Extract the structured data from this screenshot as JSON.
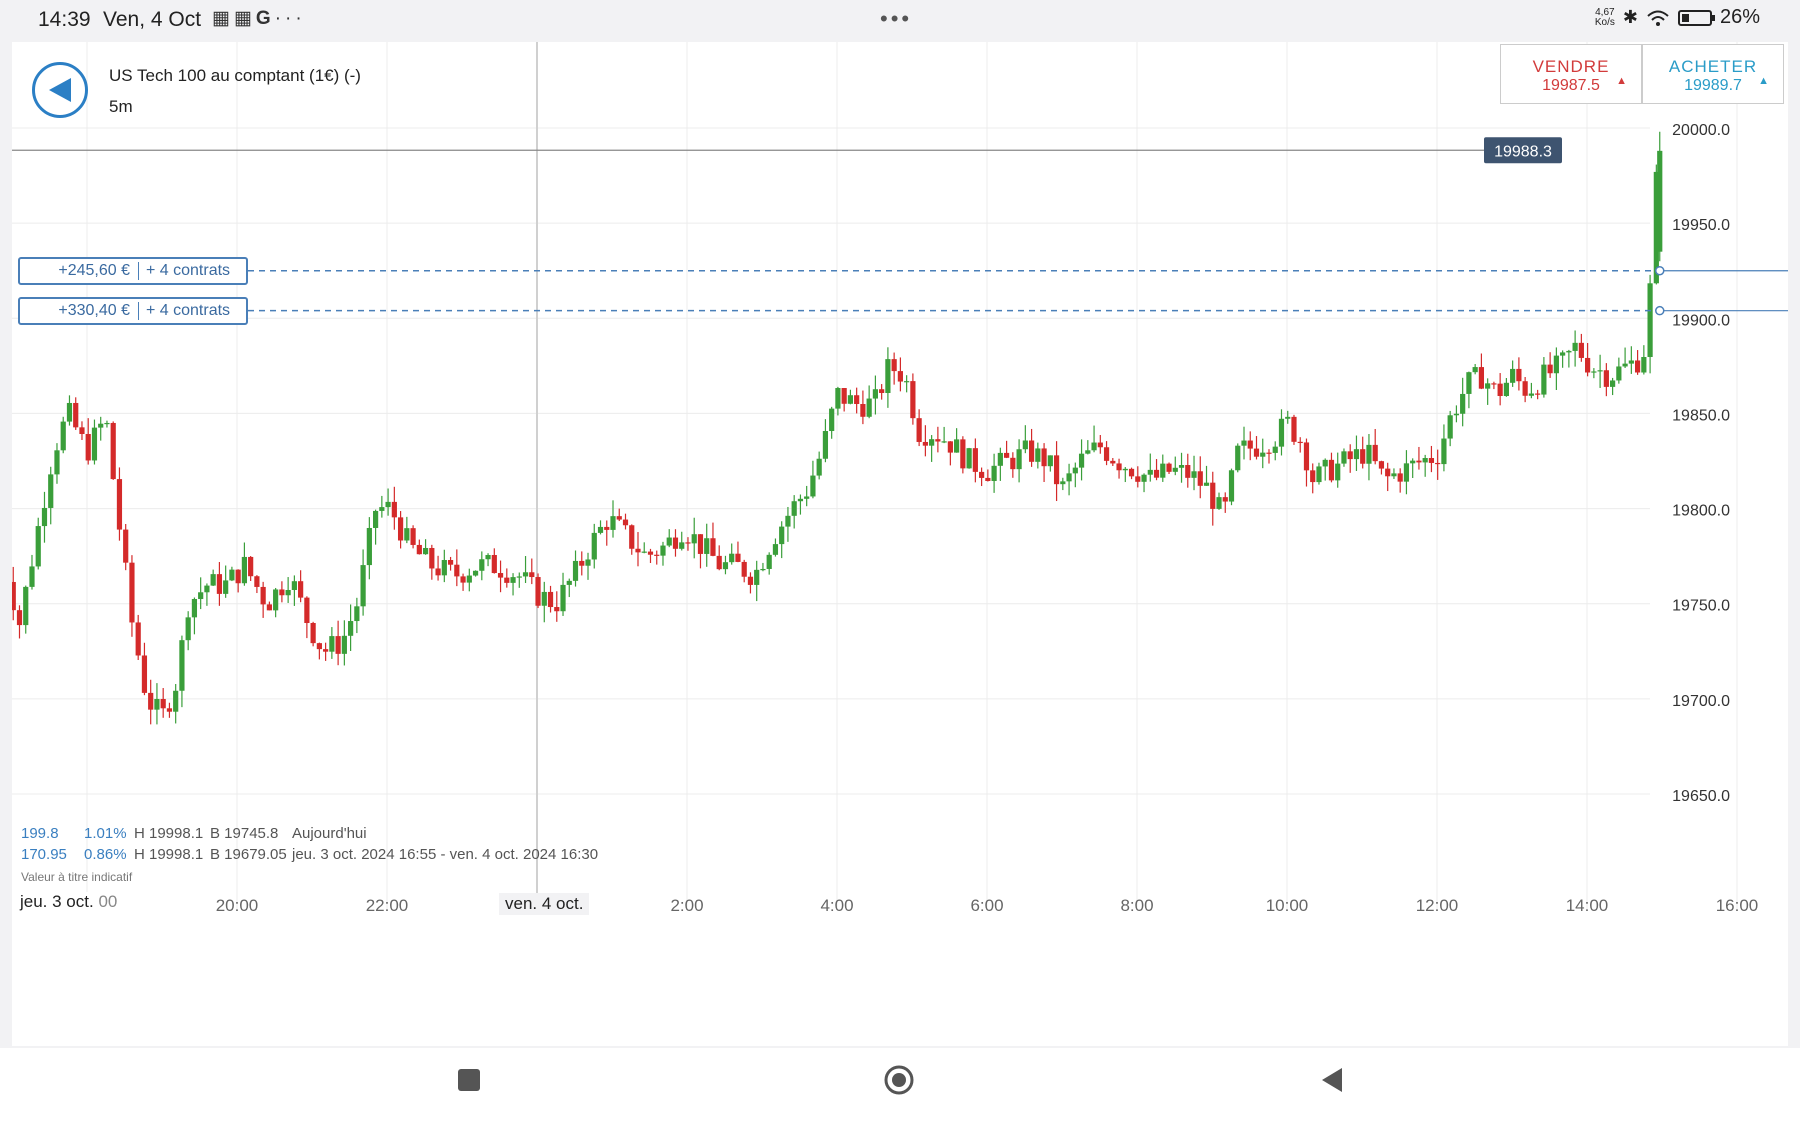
{
  "status_bar": {
    "time": "14:39",
    "date": "Ven, 4 Oct",
    "notification_icons": [
      "news-icon",
      "news-icon",
      "google-icon",
      "more-icon"
    ],
    "net_speed": "4,67",
    "net_speed_unit": "Ko/s",
    "battery": "26%",
    "battery_level": 0.26
  },
  "header": {
    "instrument": "US Tech 100 au comptant (1€) (-)",
    "timeframe": "5m"
  },
  "trade": {
    "sell_label": "VENDRE",
    "sell_price": "19987.5",
    "buy_label": "ACHETER",
    "buy_price": "19989.7"
  },
  "positions": [
    {
      "pnl": "+245,60 €",
      "qty": "+ 4 contrats",
      "level": 19925
    },
    {
      "pnl": "+330,40 €",
      "qty": "+ 4 contrats",
      "level": 19904
    }
  ],
  "stats": {
    "today": {
      "change": "199.8",
      "pct": "1.01%",
      "high": "H 19998.1",
      "low": "B 19745.8",
      "label": "Aujourd'hui"
    },
    "range": {
      "change": "170.95",
      "pct": "0.86%",
      "high": "H 19998.1",
      "low": "B 19679.05",
      "label": "jeu. 3 oct. 2024 16:55 - ven. 4 oct. 2024 16:30"
    }
  },
  "disclaimer": "Valeur à titre indicatif",
  "chart_data": {
    "type": "candlestick",
    "current_price": 19988.3,
    "current_price_label": "19988.3",
    "y_range": [
      19600,
      20010
    ],
    "y_ticks": [
      "20000.0",
      "19950.0",
      "19900.0",
      "19850.0",
      "19800.0",
      "19750.0",
      "19700.0",
      "19650.0"
    ],
    "y_tick_values": [
      20000,
      19950,
      19900,
      19850,
      19800,
      19750,
      19700,
      19650
    ],
    "x_start_label": "jeu. 3 oct.",
    "x_start_partial": "00",
    "x_ticks": [
      "20:00",
      "22:00",
      "ven. 4 oct.",
      "2:00",
      "4:00",
      "6:00",
      "8:00",
      "10:00",
      "12:00",
      "14:00",
      "16:00"
    ],
    "x_tick_hours": [
      20,
      22,
      24,
      26,
      28,
      30,
      32,
      34,
      36,
      38,
      40
    ],
    "x_range_hours": [
      16.85,
      40.0
    ],
    "series_colors": {
      "up": "#3a9e3a",
      "down": "#d42a2a"
    },
    "closes": [
      {
        "t": 16.9,
        "c": 19770
      },
      {
        "t": 17.1,
        "c": 19740
      },
      {
        "t": 17.3,
        "c": 19780
      },
      {
        "t": 17.55,
        "c": 19830
      },
      {
        "t": 17.75,
        "c": 19850
      },
      {
        "t": 18.0,
        "c": 19830
      },
      {
        "t": 18.25,
        "c": 19848
      },
      {
        "t": 18.4,
        "c": 19800
      },
      {
        "t": 18.6,
        "c": 19740
      },
      {
        "t": 18.8,
        "c": 19700
      },
      {
        "t": 19.0,
        "c": 19690
      },
      {
        "t": 19.2,
        "c": 19710
      },
      {
        "t": 19.35,
        "c": 19750
      },
      {
        "t": 19.6,
        "c": 19760
      },
      {
        "t": 19.85,
        "c": 19760
      },
      {
        "t": 20.1,
        "c": 19770
      },
      {
        "t": 20.4,
        "c": 19750
      },
      {
        "t": 20.7,
        "c": 19765
      },
      {
        "t": 20.95,
        "c": 19740
      },
      {
        "t": 21.15,
        "c": 19725
      },
      {
        "t": 21.4,
        "c": 19730
      },
      {
        "t": 21.6,
        "c": 19750
      },
      {
        "t": 21.85,
        "c": 19800
      },
      {
        "t": 22.05,
        "c": 19800
      },
      {
        "t": 22.3,
        "c": 19780
      },
      {
        "t": 22.6,
        "c": 19770
      },
      {
        "t": 22.9,
        "c": 19765
      },
      {
        "t": 23.2,
        "c": 19770
      },
      {
        "t": 23.45,
        "c": 19770
      },
      {
        "t": 23.75,
        "c": 19765
      },
      {
        "t": 24.0,
        "c": 19755
      },
      {
        "t": 24.25,
        "c": 19750
      },
      {
        "t": 24.5,
        "c": 19765
      },
      {
        "t": 24.7,
        "c": 19780
      },
      {
        "t": 24.95,
        "c": 19795
      },
      {
        "t": 25.2,
        "c": 19785
      },
      {
        "t": 25.45,
        "c": 19775
      },
      {
        "t": 25.7,
        "c": 19780
      },
      {
        "t": 25.95,
        "c": 19790
      },
      {
        "t": 26.2,
        "c": 19780
      },
      {
        "t": 26.45,
        "c": 19770
      },
      {
        "t": 26.65,
        "c": 19770
      },
      {
        "t": 26.9,
        "c": 19765
      },
      {
        "t": 27.15,
        "c": 19785
      },
      {
        "t": 27.4,
        "c": 19800
      },
      {
        "t": 27.6,
        "c": 19810
      },
      {
        "t": 27.8,
        "c": 19830
      },
      {
        "t": 28.0,
        "c": 19860
      },
      {
        "t": 28.25,
        "c": 19855
      },
      {
        "t": 28.5,
        "c": 19855
      },
      {
        "t": 28.7,
        "c": 19875
      },
      {
        "t": 28.9,
        "c": 19870
      },
      {
        "t": 29.1,
        "c": 19840
      },
      {
        "t": 29.3,
        "c": 19840
      },
      {
        "t": 29.5,
        "c": 19835
      },
      {
        "t": 29.75,
        "c": 19825
      },
      {
        "t": 30.0,
        "c": 19820
      },
      {
        "t": 30.3,
        "c": 19825
      },
      {
        "t": 30.55,
        "c": 19830
      },
      {
        "t": 30.8,
        "c": 19825
      },
      {
        "t": 31.0,
        "c": 19810
      },
      {
        "t": 31.25,
        "c": 19825
      },
      {
        "t": 31.5,
        "c": 19833
      },
      {
        "t": 31.75,
        "c": 19825
      },
      {
        "t": 32.0,
        "c": 19820
      },
      {
        "t": 32.2,
        "c": 19815
      },
      {
        "t": 32.45,
        "c": 19820
      },
      {
        "t": 32.7,
        "c": 19818
      },
      {
        "t": 32.95,
        "c": 19810
      },
      {
        "t": 33.15,
        "c": 19795
      },
      {
        "t": 33.35,
        "c": 19830
      },
      {
        "t": 33.6,
        "c": 19833
      },
      {
        "t": 33.85,
        "c": 19838
      },
      {
        "t": 34.0,
        "c": 19845
      },
      {
        "t": 34.2,
        "c": 19835
      },
      {
        "t": 34.35,
        "c": 19815
      },
      {
        "t": 34.55,
        "c": 19820
      },
      {
        "t": 34.8,
        "c": 19825
      },
      {
        "t": 35.05,
        "c": 19830
      },
      {
        "t": 35.3,
        "c": 19815
      },
      {
        "t": 35.55,
        "c": 19820
      },
      {
        "t": 35.8,
        "c": 19825
      },
      {
        "t": 36.0,
        "c": 19828
      },
      {
        "t": 36.2,
        "c": 19850
      },
      {
        "t": 36.4,
        "c": 19865
      },
      {
        "t": 36.6,
        "c": 19870
      },
      {
        "t": 36.8,
        "c": 19860
      },
      {
        "t": 37.0,
        "c": 19870
      },
      {
        "t": 37.2,
        "c": 19862
      },
      {
        "t": 37.45,
        "c": 19870
      },
      {
        "t": 37.65,
        "c": 19875
      },
      {
        "t": 37.85,
        "c": 19885
      },
      {
        "t": 38.05,
        "c": 19875
      },
      {
        "t": 38.3,
        "c": 19870
      },
      {
        "t": 38.55,
        "c": 19875
      },
      {
        "t": 38.75,
        "c": 19880
      },
      {
        "t": 38.88,
        "c": 19930
      },
      {
        "t": 38.92,
        "c": 19970
      },
      {
        "t": 38.97,
        "c": 19988
      }
    ]
  },
  "nav": {
    "recents_icon": "square-icon",
    "home_icon": "circle-icon",
    "back_icon": "triangle-back-icon"
  }
}
